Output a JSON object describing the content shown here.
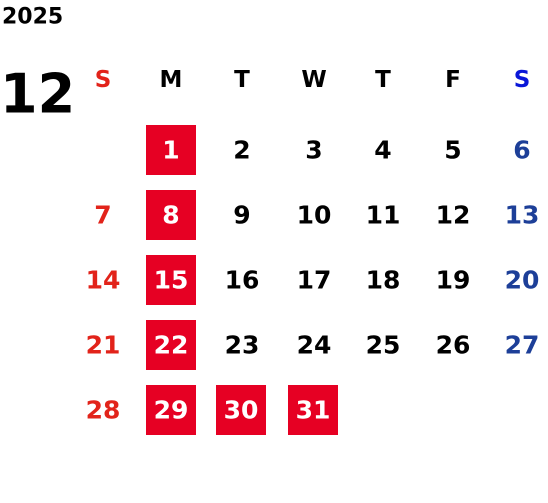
{
  "calendar": {
    "year": "2025",
    "month": "12",
    "weekdays": [
      "S",
      "M",
      "T",
      "W",
      "T",
      "F",
      "S"
    ],
    "header_colors": [
      "#e2231a",
      "#000000",
      "#000000",
      "#000000",
      "#000000",
      "#000000",
      "#0a17d8"
    ],
    "day_colors": [
      "#e2231a",
      "#000000",
      "#000000",
      "#000000",
      "#000000",
      "#000000",
      "#1d3f98"
    ],
    "highlight_color": "#e60023",
    "highlight_text_color": "#ffffff",
    "weeks": [
      [
        null,
        {
          "label": "1",
          "highlight": true
        },
        {
          "label": "2"
        },
        {
          "label": "3"
        },
        {
          "label": "4"
        },
        {
          "label": "5"
        },
        {
          "label": "6"
        }
      ],
      [
        {
          "label": "7"
        },
        {
          "label": "8",
          "highlight": true
        },
        {
          "label": "9"
        },
        {
          "label": "10"
        },
        {
          "label": "11"
        },
        {
          "label": "12"
        },
        {
          "label": "13"
        }
      ],
      [
        {
          "label": "14"
        },
        {
          "label": "15",
          "highlight": true
        },
        {
          "label": "16"
        },
        {
          "label": "17"
        },
        {
          "label": "18"
        },
        {
          "label": "19"
        },
        {
          "label": "20"
        }
      ],
      [
        {
          "label": "21"
        },
        {
          "label": "22",
          "highlight": true
        },
        {
          "label": "23"
        },
        {
          "label": "24"
        },
        {
          "label": "25"
        },
        {
          "label": "26"
        },
        {
          "label": "27"
        }
      ],
      [
        {
          "label": "28"
        },
        {
          "label": "29",
          "highlight": true
        },
        {
          "label": "30",
          "highlight": true
        },
        {
          "label": "31",
          "highlight": true
        },
        null,
        null,
        null
      ]
    ]
  }
}
